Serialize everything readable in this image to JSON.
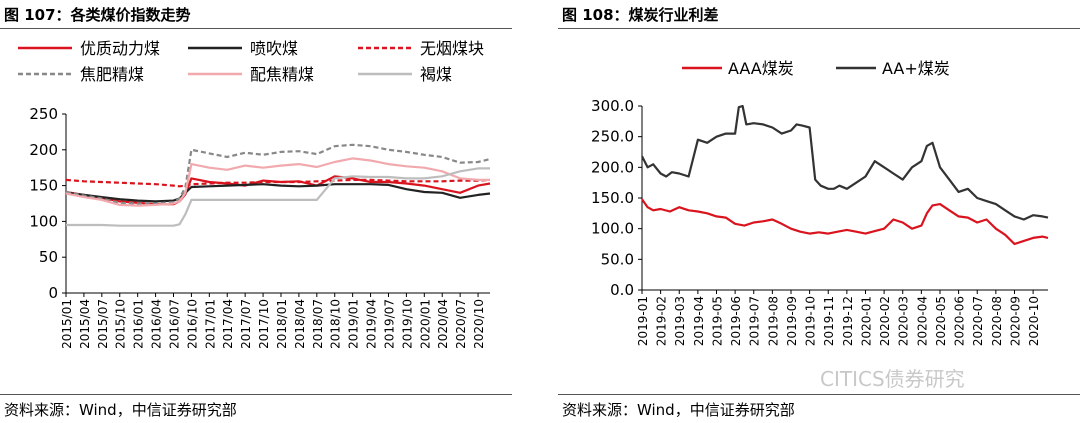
{
  "left_panel": {
    "title": "图 107：各类煤价指数走势",
    "source": "资料来源：Wind，中信证券研究部"
  },
  "right_panel": {
    "title": "图 108：煤炭行业利差",
    "source": "资料来源：Wind，中信证券研究部"
  },
  "watermark": "CITICS债券研究",
  "chart_data": [
    {
      "type": "line",
      "title": "图 107：各类煤价指数走势",
      "xlabel": "",
      "ylabel": "",
      "ylim": [
        0,
        250
      ],
      "yticks": [
        0,
        50,
        100,
        150,
        200,
        250
      ],
      "xticks": [
        "2015/01",
        "2015/04",
        "2015/07",
        "2015/10",
        "2016/01",
        "2016/04",
        "2016/07",
        "2016/10",
        "2017/01",
        "2017/04",
        "2017/07",
        "2017/10",
        "2018/01",
        "2018/04",
        "2018/07",
        "2018/10",
        "2019/01",
        "2019/04",
        "2019/07",
        "2019/10",
        "2020/01",
        "2020/04",
        "2020/07",
        "2020/10"
      ],
      "legend_position": "top",
      "grid": false,
      "series": [
        {
          "name": "优质动力煤",
          "color": "#d9141e",
          "dash": "solid",
          "x": [
            "2015/01",
            "2015/04",
            "2015/07",
            "2015/10",
            "2016/01",
            "2016/04",
            "2016/07",
            "2016/08",
            "2016/09",
            "2016/10",
            "2017/01",
            "2017/04",
            "2017/07",
            "2017/10",
            "2018/01",
            "2018/04",
            "2018/07",
            "2018/10",
            "2019/01",
            "2019/04",
            "2019/07",
            "2019/10",
            "2020/01",
            "2020/04",
            "2020/07",
            "2020/10",
            "2020/12"
          ],
          "values": [
            141,
            137,
            133,
            128,
            126,
            124,
            124,
            128,
            138,
            160,
            155,
            153,
            150,
            157,
            155,
            156,
            150,
            163,
            160,
            155,
            155,
            153,
            150,
            145,
            140,
            150,
            153
          ]
        },
        {
          "name": "喷吹煤",
          "color": "#222222",
          "dash": "solid",
          "x": [
            "2015/01",
            "2015/04",
            "2015/07",
            "2015/10",
            "2016/01",
            "2016/04",
            "2016/07",
            "2016/08",
            "2016/09",
            "2016/10",
            "2017/01",
            "2017/04",
            "2017/07",
            "2017/10",
            "2018/01",
            "2018/04",
            "2018/07",
            "2018/10",
            "2019/01",
            "2019/04",
            "2019/07",
            "2019/10",
            "2020/01",
            "2020/04",
            "2020/07",
            "2020/10",
            "2020/12"
          ],
          "values": [
            140,
            137,
            134,
            131,
            129,
            128,
            129,
            132,
            140,
            148,
            149,
            150,
            151,
            152,
            150,
            149,
            150,
            152,
            152,
            152,
            151,
            145,
            141,
            140,
            133,
            137,
            139
          ]
        },
        {
          "name": "无烟煤块",
          "color": "#d9141e",
          "dash": "dashed",
          "x": [
            "2015/01",
            "2015/04",
            "2015/07",
            "2015/10",
            "2016/01",
            "2016/04",
            "2016/07",
            "2016/08",
            "2016/09",
            "2016/10",
            "2017/01",
            "2017/04",
            "2017/07",
            "2017/10",
            "2018/01",
            "2018/04",
            "2018/07",
            "2018/10",
            "2019/01",
            "2019/04",
            "2019/07",
            "2019/10",
            "2020/01",
            "2020/04",
            "2020/07",
            "2020/10",
            "2020/12"
          ],
          "values": [
            158,
            156,
            155,
            154,
            153,
            152,
            150,
            149,
            150,
            152,
            153,
            154,
            154,
            155,
            155,
            155,
            156,
            157,
            158,
            158,
            157,
            156,
            156,
            156,
            157,
            157,
            158
          ]
        },
        {
          "name": "焦肥精煤",
          "color": "#888888",
          "dash": "dashed",
          "x": [
            "2015/01",
            "2015/04",
            "2015/07",
            "2015/10",
            "2016/01",
            "2016/04",
            "2016/07",
            "2016/08",
            "2016/09",
            "2016/10",
            "2017/01",
            "2017/04",
            "2017/07",
            "2017/10",
            "2018/01",
            "2018/04",
            "2018/07",
            "2018/10",
            "2019/01",
            "2019/04",
            "2019/07",
            "2019/10",
            "2020/01",
            "2020/04",
            "2020/07",
            "2020/10",
            "2020/12"
          ],
          "values": [
            141,
            136,
            132,
            126,
            125,
            125,
            127,
            132,
            148,
            200,
            195,
            190,
            196,
            193,
            197,
            198,
            194,
            205,
            207,
            205,
            200,
            197,
            193,
            190,
            182,
            183,
            187
          ]
        },
        {
          "name": "配焦精煤",
          "color": "#f2a9ae",
          "dash": "solid",
          "x": [
            "2015/01",
            "2015/04",
            "2015/07",
            "2015/10",
            "2016/01",
            "2016/04",
            "2016/07",
            "2016/08",
            "2016/09",
            "2016/10",
            "2017/01",
            "2017/04",
            "2017/07",
            "2017/10",
            "2018/01",
            "2018/04",
            "2018/07",
            "2018/10",
            "2019/01",
            "2019/04",
            "2019/07",
            "2019/10",
            "2020/01",
            "2020/04",
            "2020/07",
            "2020/10",
            "2020/12"
          ],
          "values": [
            139,
            134,
            130,
            123,
            122,
            123,
            125,
            128,
            140,
            180,
            175,
            172,
            178,
            175,
            178,
            180,
            176,
            183,
            188,
            185,
            180,
            177,
            175,
            170,
            160,
            158,
            158
          ]
        },
        {
          "name": "褐煤",
          "color": "#bdbdbd",
          "dash": "solid",
          "x": [
            "2015/01",
            "2015/04",
            "2015/07",
            "2015/10",
            "2016/01",
            "2016/04",
            "2016/07",
            "2016/08",
            "2016/09",
            "2016/10",
            "2017/01",
            "2017/04",
            "2017/07",
            "2017/10",
            "2018/01",
            "2018/04",
            "2018/07",
            "2018/10",
            "2019/01",
            "2019/04",
            "2019/07",
            "2019/10",
            "2020/01",
            "2020/04",
            "2020/07",
            "2020/10",
            "2020/12"
          ],
          "values": [
            95,
            95,
            95,
            94,
            94,
            94,
            94,
            96,
            110,
            130,
            130,
            130,
            130,
            130,
            130,
            130,
            130,
            160,
            163,
            162,
            162,
            160,
            160,
            163,
            170,
            174,
            174
          ]
        }
      ]
    },
    {
      "type": "line",
      "title": "图 108：煤炭行业利差",
      "xlabel": "",
      "ylabel": "",
      "ylim": [
        0,
        300
      ],
      "yticks": [
        "0.0",
        "50.0",
        "100.0",
        "150.0",
        "200.0",
        "250.0",
        "300.0"
      ],
      "xticks": [
        "2019-01",
        "2019-02",
        "2019-03",
        "2019-04",
        "2019-05",
        "2019-06",
        "2019-07",
        "2019-08",
        "2019-09",
        "2019-10",
        "2019-11",
        "2019-12",
        "2020-01",
        "2020-02",
        "2020-03",
        "2020-04",
        "2020-05",
        "2020-06",
        "2020-07",
        "2020-08",
        "2020-09",
        "2020-10"
      ],
      "legend_position": "top",
      "grid": false,
      "series": [
        {
          "name": "AAA煤炭",
          "color": "#d9141e",
          "dash": "solid",
          "x": [
            0,
            0.3,
            0.6,
            1,
            1.5,
            2,
            2.5,
            3,
            3.5,
            4,
            4.5,
            5,
            5.5,
            6,
            6.5,
            7,
            7.5,
            8,
            8.5,
            9,
            9.5,
            10,
            10.5,
            11,
            11.5,
            12,
            12.5,
            13,
            13.5,
            14,
            14.5,
            15,
            15.3,
            15.6,
            16,
            16.5,
            17,
            17.5,
            18,
            18.5,
            19,
            19.5,
            20,
            20.5,
            21,
            21.5,
            21.8
          ],
          "values": [
            148,
            135,
            130,
            132,
            128,
            135,
            130,
            128,
            125,
            120,
            118,
            108,
            105,
            110,
            112,
            115,
            108,
            100,
            95,
            92,
            94,
            92,
            95,
            98,
            95,
            92,
            96,
            100,
            115,
            110,
            100,
            105,
            125,
            138,
            140,
            130,
            120,
            118,
            110,
            115,
            100,
            90,
            75,
            80,
            85,
            87,
            85
          ]
        },
        {
          "name": "AA+煤炭",
          "color": "#333333",
          "dash": "solid",
          "x": [
            0,
            0.3,
            0.6,
            1,
            1.3,
            1.6,
            2,
            2.5,
            3,
            3.5,
            4,
            4.5,
            5,
            5.2,
            5.4,
            5.6,
            6,
            6.5,
            7,
            7.5,
            8,
            8.3,
            8.6,
            9,
            9.3,
            9.6,
            10,
            10.3,
            10.6,
            11,
            11.5,
            12,
            12.5,
            13,
            13.5,
            14,
            14.5,
            15,
            15.3,
            15.6,
            16,
            16.5,
            17,
            17.5,
            18,
            18.5,
            19,
            19.5,
            20,
            20.5,
            21,
            21.5,
            21.8
          ],
          "values": [
            218,
            200,
            205,
            190,
            185,
            192,
            190,
            185,
            245,
            240,
            250,
            255,
            255,
            298,
            300,
            270,
            272,
            270,
            265,
            255,
            260,
            270,
            268,
            265,
            180,
            170,
            165,
            165,
            170,
            165,
            175,
            185,
            210,
            200,
            190,
            180,
            200,
            210,
            235,
            240,
            200,
            180,
            160,
            165,
            150,
            145,
            140,
            130,
            120,
            115,
            122,
            120,
            118
          ]
        }
      ]
    }
  ]
}
